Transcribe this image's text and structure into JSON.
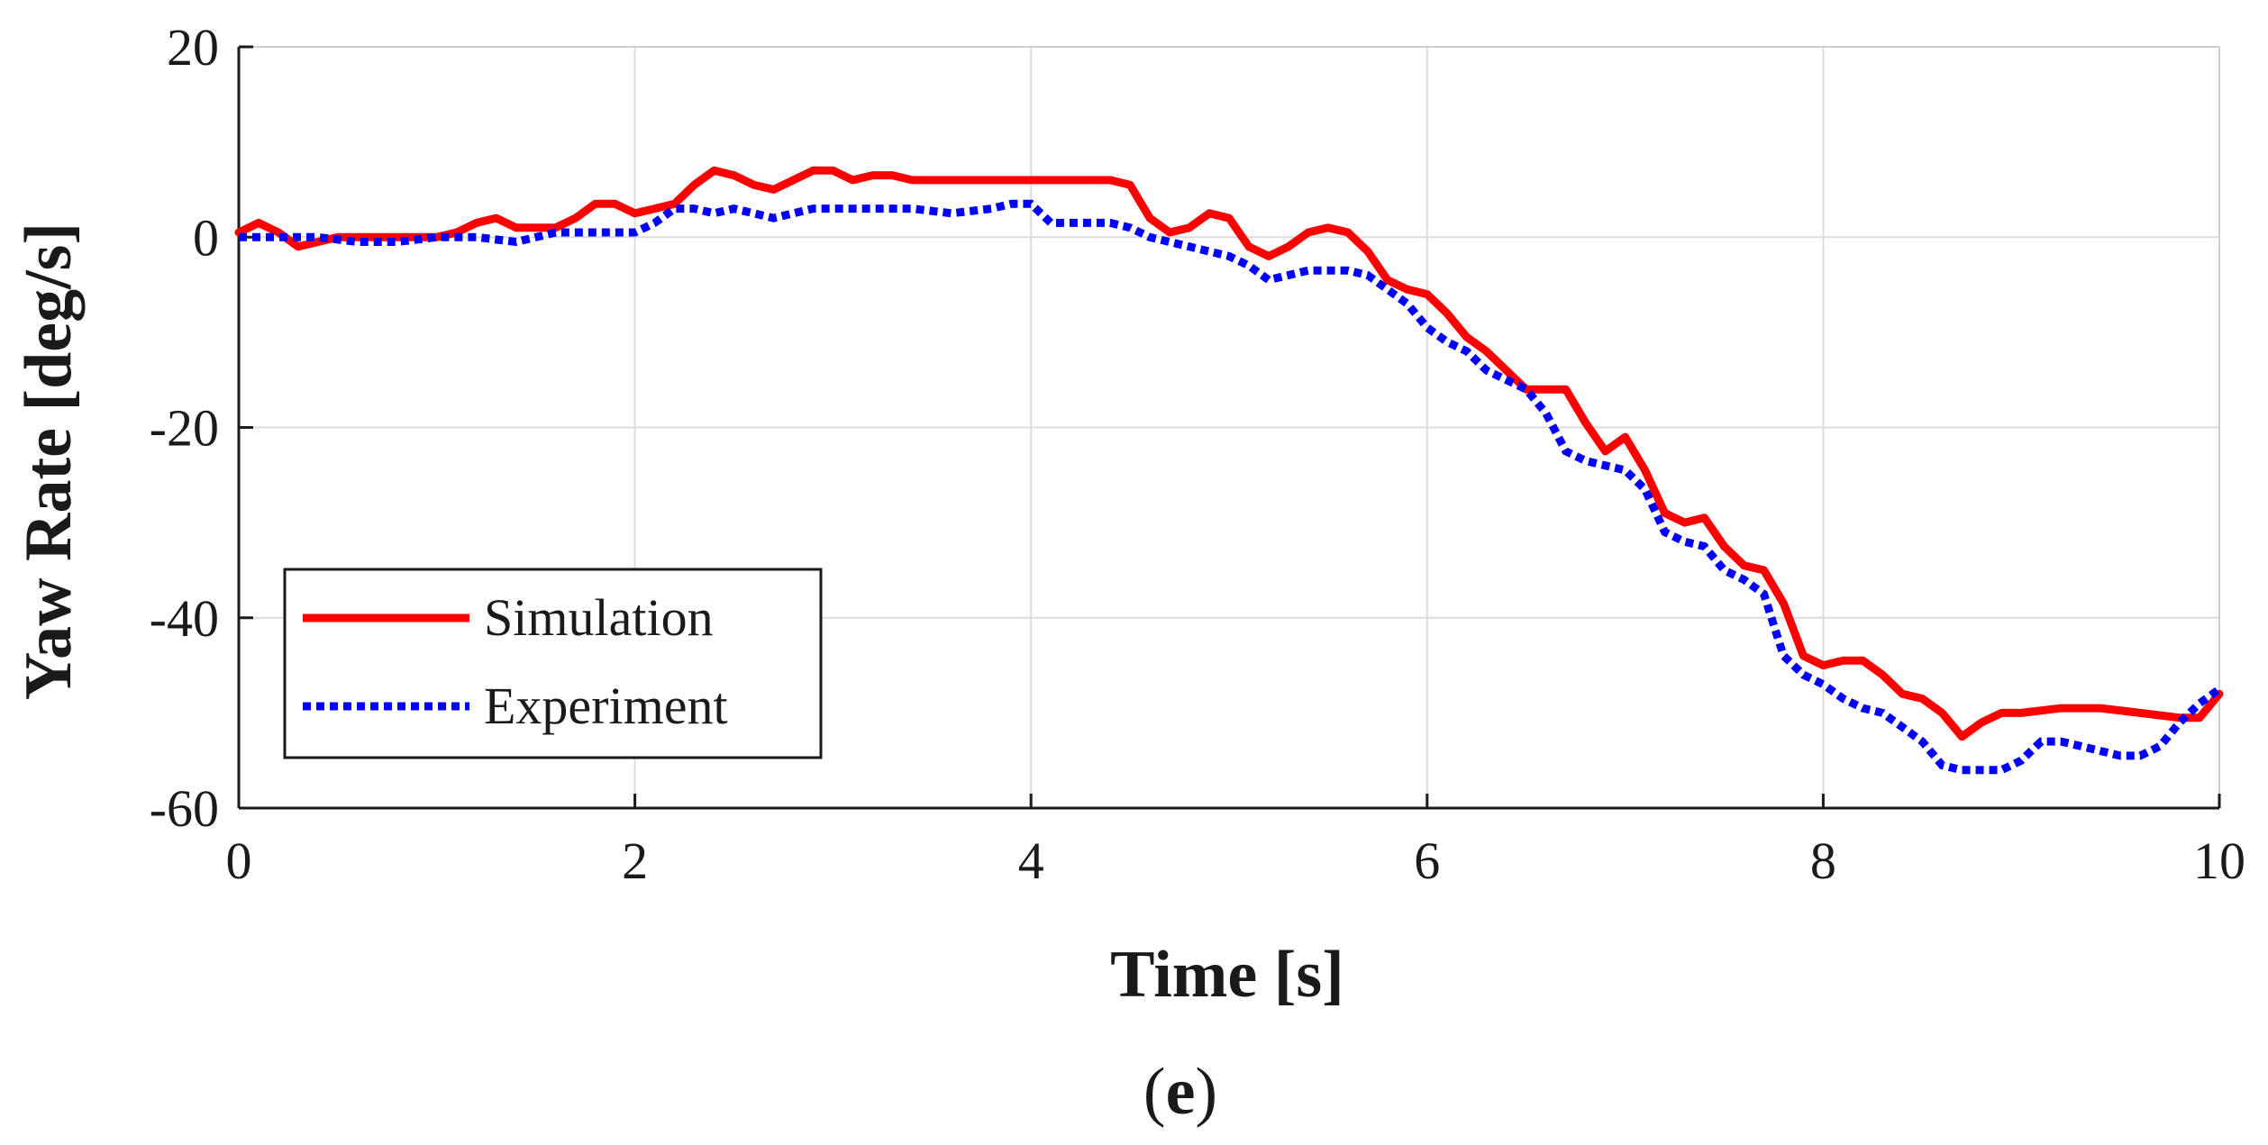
{
  "chart_data": {
    "type": "line",
    "xlabel": "Time [s]",
    "ylabel": "Yaw Rate [deg/s]",
    "xlim": [
      0,
      10
    ],
    "ylim": [
      -60,
      20
    ],
    "xticks": [
      0,
      2,
      4,
      6,
      8,
      10
    ],
    "yticks": [
      -60,
      -40,
      -20,
      0,
      20
    ],
    "grid": true,
    "legend_position": "bottom-left",
    "caption": {
      "open": "(",
      "letter": "e",
      "close": ")"
    },
    "series": [
      {
        "name": "Simulation",
        "color": "#ff0000",
        "style": "solid",
        "x": [
          0,
          0.1,
          0.2,
          0.3,
          0.4,
          0.5,
          0.6,
          0.8,
          1.0,
          1.1,
          1.2,
          1.3,
          1.4,
          1.5,
          1.6,
          1.7,
          1.8,
          1.9,
          2.0,
          2.1,
          2.2,
          2.3,
          2.4,
          2.5,
          2.6,
          2.7,
          2.8,
          2.9,
          3.0,
          3.1,
          3.2,
          3.3,
          3.4,
          3.5,
          3.6,
          3.8,
          4.0,
          4.2,
          4.4,
          4.5,
          4.6,
          4.7,
          4.8,
          4.9,
          5.0,
          5.1,
          5.2,
          5.3,
          5.4,
          5.5,
          5.6,
          5.7,
          5.8,
          5.9,
          6.0,
          6.1,
          6.2,
          6.3,
          6.4,
          6.5,
          6.6,
          6.7,
          6.8,
          6.9,
          7.0,
          7.1,
          7.2,
          7.3,
          7.4,
          7.5,
          7.6,
          7.7,
          7.8,
          7.9,
          8.0,
          8.1,
          8.2,
          8.3,
          8.4,
          8.5,
          8.6,
          8.7,
          8.8,
          8.9,
          9.0,
          9.2,
          9.4,
          9.6,
          9.8,
          9.9,
          10.0
        ],
        "y": [
          0.5,
          1.5,
          0.5,
          -1,
          -0.5,
          0,
          0,
          0,
          0,
          0.5,
          1.5,
          2,
          1,
          1,
          1,
          2,
          3.5,
          3.5,
          2.5,
          3,
          3.5,
          5.5,
          7,
          6.5,
          5.5,
          5,
          6,
          7,
          7,
          6,
          6.5,
          6.5,
          6,
          6,
          6,
          6,
          6,
          6,
          6,
          5.5,
          2,
          0.5,
          1,
          2.5,
          2,
          -1,
          -2,
          -1,
          0.5,
          1,
          0.5,
          -1.5,
          -4.5,
          -5.5,
          -6,
          -8,
          -10.5,
          -12,
          -14,
          -16,
          -16,
          -16,
          -19.5,
          -22.5,
          -21,
          -24.5,
          -29,
          -30,
          -29.5,
          -32.5,
          -34.5,
          -35,
          -38.5,
          -44,
          -45,
          -44.5,
          -44.5,
          -46,
          -48,
          -48.5,
          -50,
          -52.5,
          -51,
          -50,
          -50,
          -49.5,
          -49.5,
          -50,
          -50.5,
          -50.5,
          -48
        ]
      },
      {
        "name": "Experiment",
        "color": "#0000ff",
        "style": "dotted",
        "x": [
          0,
          0.2,
          0.4,
          0.6,
          0.8,
          1.0,
          1.2,
          1.4,
          1.5,
          1.6,
          1.8,
          2.0,
          2.1,
          2.2,
          2.3,
          2.4,
          2.5,
          2.6,
          2.7,
          2.8,
          2.9,
          3.0,
          3.2,
          3.4,
          3.6,
          3.8,
          3.9,
          4.0,
          4.1,
          4.2,
          4.4,
          4.5,
          4.6,
          4.8,
          5.0,
          5.1,
          5.2,
          5.3,
          5.4,
          5.6,
          5.7,
          5.8,
          5.9,
          6.0,
          6.1,
          6.2,
          6.3,
          6.4,
          6.5,
          6.6,
          6.7,
          6.8,
          6.9,
          7.0,
          7.1,
          7.2,
          7.3,
          7.4,
          7.5,
          7.6,
          7.7,
          7.8,
          7.9,
          8.0,
          8.1,
          8.2,
          8.3,
          8.4,
          8.5,
          8.6,
          8.7,
          8.8,
          8.9,
          9.0,
          9.1,
          9.2,
          9.3,
          9.4,
          9.5,
          9.6,
          9.7,
          9.8,
          9.9,
          10.0
        ],
        "y": [
          0,
          0,
          0,
          -0.5,
          -0.5,
          0,
          0,
          -0.5,
          0,
          0.5,
          0.5,
          0.5,
          1.5,
          3,
          3,
          2.5,
          3,
          2.5,
          2,
          2.5,
          3,
          3,
          3,
          3,
          2.5,
          3,
          3.5,
          3.5,
          1.5,
          1.5,
          1.5,
          1,
          0,
          -1,
          -2,
          -3,
          -4.5,
          -4,
          -3.5,
          -3.5,
          -4,
          -5.5,
          -7,
          -9.5,
          -11,
          -12,
          -14,
          -15,
          -16,
          -18.5,
          -22.5,
          -23.5,
          -24,
          -24.5,
          -26.5,
          -31,
          -32,
          -32.5,
          -35,
          -36,
          -37.5,
          -44,
          -46,
          -47,
          -48.5,
          -49.5,
          -50,
          -51.5,
          -53,
          -55.5,
          -56,
          -56,
          -56,
          -55,
          -53,
          -53,
          -53.5,
          -54,
          -54.5,
          -54.5,
          -53.5,
          -51,
          -49,
          -47.5
        ]
      }
    ]
  }
}
